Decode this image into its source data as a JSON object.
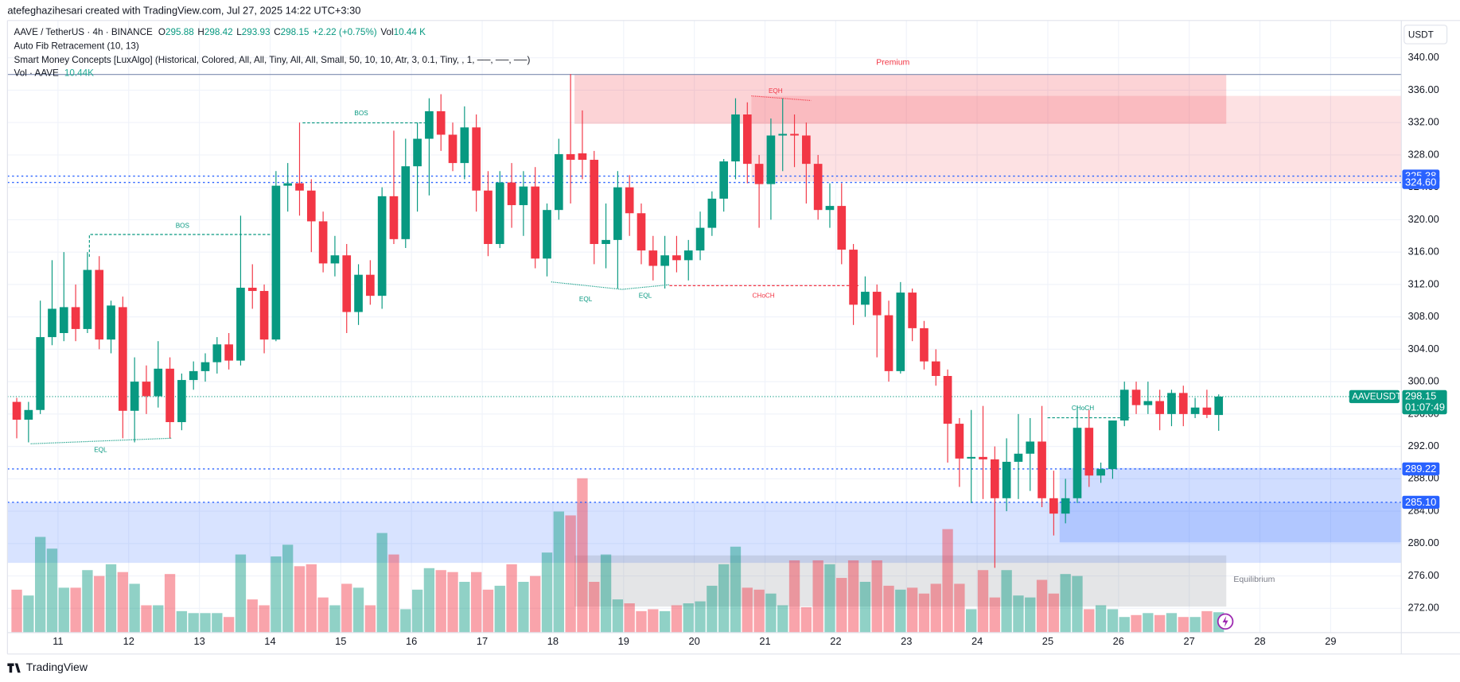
{
  "header": {
    "credit": "atefeghazihesari created with TradingView.com, Jul 27, 2025 14:22 UTC+3:30",
    "symbol": "AAVE / TetherUS · 4h · BINANCE",
    "open_label": "O",
    "open": 295.88,
    "high_label": "H",
    "high": 298.42,
    "low_label": "L",
    "low": 293.93,
    "close_label": "C",
    "close": 298.15,
    "change": "+2.22 (+0.75%)",
    "vol_label": "Vol",
    "vol": "10.44 K",
    "indicator_1": "Auto Fib Retracement (10, 13)",
    "indicator_2": "Smart Money Concepts [LuxAlgo] (Historical, Colored, All, All, Tiny, All, All, Small, 50, 10, 10, Atr, 3, 0.1, Tiny, , 1, ──, ──, ──)",
    "indicator_3": "Vol · AAVE",
    "indicator_3_value": "10.44K"
  },
  "footer": {
    "brand": "TradingView"
  },
  "chart_data": {
    "type": "candlestick",
    "currency": "USDT",
    "up_color": "#089981",
    "down_color": "#f23645",
    "volume_up_color": "rgba(8,153,129,0.45)",
    "volume_down_color": "rgba(242,54,69,0.45)",
    "ylim": [
      269,
      344.6
    ],
    "yticks": [
      {
        "value": 272,
        "label": "272.00"
      },
      {
        "value": 276,
        "label": "276.00"
      },
      {
        "value": 280,
        "label": "280.00"
      },
      {
        "value": 284,
        "label": "284.00"
      },
      {
        "value": 288,
        "label": "288.00"
      },
      {
        "value": 292,
        "label": "292.00"
      },
      {
        "value": 296,
        "label": "296.00"
      },
      {
        "value": 300,
        "label": "300.00"
      },
      {
        "value": 304,
        "label": "304.00"
      },
      {
        "value": 308,
        "label": "308.00"
      },
      {
        "value": 312,
        "label": "312.00"
      },
      {
        "value": 316,
        "label": "316.00"
      },
      {
        "value": 320,
        "label": "320.00"
      },
      {
        "value": 324,
        "label": "324.00"
      },
      {
        "value": 328,
        "label": "328.00"
      },
      {
        "value": 332,
        "label": "332.00"
      },
      {
        "value": 336,
        "label": "336.00"
      },
      {
        "value": 340,
        "label": "340.00"
      }
    ],
    "grid": true,
    "categories": [
      null,
      null,
      null,
      null,
      "11",
      null,
      null,
      null,
      null,
      null,
      "12",
      null,
      null,
      null,
      null,
      null,
      "13",
      null,
      null,
      null,
      null,
      null,
      "14",
      null,
      null,
      null,
      null,
      null,
      "15",
      null,
      null,
      null,
      null,
      null,
      "16",
      null,
      null,
      null,
      null,
      null,
      "17",
      null,
      null,
      null,
      null,
      null,
      "18",
      null,
      null,
      null,
      null,
      null,
      "19",
      null,
      null,
      null,
      null,
      null,
      "20",
      null,
      null,
      null,
      null,
      null,
      "21",
      null,
      null,
      null,
      null,
      null,
      "22",
      null,
      null,
      null,
      null,
      null,
      "23",
      null,
      null,
      null,
      null,
      null,
      "24",
      null,
      null,
      null,
      null,
      null,
      "25",
      null,
      null,
      null,
      null,
      null,
      "26",
      null,
      null,
      null,
      null,
      null,
      "27",
      null,
      null,
      null,
      null,
      null,
      "28",
      null,
      null,
      null,
      null,
      null,
      "29",
      null,
      null,
      null,
      null,
      null
    ],
    "ohlc": [
      [
        297.5,
        298,
        293,
        295.3
      ],
      [
        295.3,
        297.5,
        292.5,
        296.5
      ],
      [
        296.5,
        310,
        296,
        305.5
      ],
      [
        305.5,
        315,
        304.5,
        309
      ],
      [
        306,
        316,
        305,
        309.2
      ],
      [
        309.2,
        312,
        305,
        306.5
      ],
      [
        306.5,
        316,
        306,
        313.8
      ],
      [
        313.8,
        315.5,
        304,
        305.2
      ],
      [
        305.2,
        310,
        303.5,
        309.4
      ],
      [
        309.2,
        310.5,
        293,
        296.4
      ],
      [
        296.4,
        303,
        292.5,
        300
      ],
      [
        300,
        302,
        296,
        298.2
      ],
      [
        298.2,
        305,
        296.8,
        301.6
      ],
      [
        301.6,
        303,
        293,
        295
      ],
      [
        295,
        301,
        294,
        300.2
      ],
      [
        300.2,
        302.5,
        299,
        301.3
      ],
      [
        301.3,
        303.5,
        300,
        302.4
      ],
      [
        302.4,
        305.5,
        301,
        304.6
      ],
      [
        304.6,
        306,
        301.5,
        302.6
      ],
      [
        302.6,
        320.5,
        302,
        311.6
      ],
      [
        311.6,
        314.5,
        309,
        311.2
      ],
      [
        311.2,
        312,
        303.5,
        305.2
      ],
      [
        305.2,
        326,
        305,
        324.2
      ],
      [
        324.2,
        327,
        321,
        324.5
      ],
      [
        324.5,
        332,
        320.5,
        323.6
      ],
      [
        323.6,
        325,
        316,
        319.8
      ],
      [
        319.8,
        321,
        313.5,
        314.6
      ],
      [
        314.6,
        318,
        313,
        315.6
      ],
      [
        315.6,
        317,
        306,
        308.6
      ],
      [
        308.6,
        314.5,
        307,
        313.2
      ],
      [
        313.2,
        315,
        309.5,
        310.6
      ],
      [
        310.6,
        324,
        309,
        322.9
      ],
      [
        322.9,
        331,
        317,
        317.6
      ],
      [
        317.6,
        330,
        316.5,
        326.6
      ],
      [
        326.6,
        332,
        321,
        330
      ],
      [
        330,
        335,
        323,
        333.4
      ],
      [
        333.4,
        335.5,
        328.5,
        330.5
      ],
      [
        330.5,
        332,
        326,
        327
      ],
      [
        327,
        334,
        325,
        331.4
      ],
      [
        331.4,
        333,
        321,
        323.6
      ],
      [
        323.6,
        326,
        315.5,
        317
      ],
      [
        317,
        326,
        316.5,
        324.6
      ],
      [
        324.6,
        327,
        319,
        321.8
      ],
      [
        321.8,
        326,
        318,
        324.1
      ],
      [
        324.1,
        326.5,
        314,
        315.2
      ],
      [
        315.2,
        322,
        313,
        321.2
      ],
      [
        321.2,
        330,
        320,
        328.1
      ],
      [
        328.1,
        338,
        322,
        327.4
      ],
      [
        328.2,
        333.5,
        325,
        327.4
      ],
      [
        327.4,
        328.5,
        314.5,
        317
      ],
      [
        317,
        322,
        314,
        317.5
      ],
      [
        317.5,
        326,
        311.5,
        324
      ],
      [
        324,
        325.5,
        318,
        320.8
      ],
      [
        320.8,
        322,
        314.5,
        316.2
      ],
      [
        316.2,
        318,
        312.5,
        314.3
      ],
      [
        314.3,
        318,
        311.5,
        315.6
      ],
      [
        315.6,
        318,
        313.5,
        315
      ],
      [
        315,
        317.5,
        312.5,
        316.2
      ],
      [
        316.2,
        321,
        315,
        319
      ],
      [
        319,
        323.5,
        318,
        322.6
      ],
      [
        322.6,
        327.5,
        321,
        327.2
      ],
      [
        327.2,
        335,
        325,
        333
      ],
      [
        333,
        334.5,
        324.5,
        326.9
      ],
      [
        326.9,
        328,
        319,
        324.4
      ],
      [
        324.4,
        332.5,
        320,
        330.4
      ],
      [
        330.4,
        335,
        326,
        330.6
      ],
      [
        330.6,
        333,
        326.5,
        330.4
      ],
      [
        330.4,
        332,
        322,
        326.9
      ],
      [
        326.9,
        328,
        320,
        321.2
      ],
      [
        321.2,
        324.5,
        319,
        321.7
      ],
      [
        321.7,
        324.5,
        314.5,
        316.3
      ],
      [
        316.3,
        317,
        307,
        309.5
      ],
      [
        309.5,
        313,
        308,
        311.1
      ],
      [
        311.1,
        312,
        303,
        308.2
      ],
      [
        308.2,
        310,
        300,
        301.3
      ],
      [
        301.3,
        312.3,
        301,
        311
      ],
      [
        311,
        311.5,
        305,
        306.6
      ],
      [
        306.6,
        307.5,
        301.5,
        302.5
      ],
      [
        302.5,
        304,
        299.5,
        300.7
      ],
      [
        300.7,
        301.5,
        290,
        294.8
      ],
      [
        294.8,
        295.5,
        287,
        290.5
      ],
      [
        290.5,
        296.5,
        285,
        290.7
      ],
      [
        290.7,
        297,
        285.5,
        290.4
      ],
      [
        290.4,
        292,
        277,
        285.6
      ],
      [
        285.6,
        293,
        284,
        290.1
      ],
      [
        290.1,
        296,
        285.5,
        291.1
      ],
      [
        291.1,
        295.5,
        286.5,
        292.6
      ],
      [
        292.6,
        297,
        284.5,
        285.6
      ],
      [
        285.6,
        289,
        281,
        283.7
      ],
      [
        283.7,
        288,
        282.5,
        285.6
      ],
      [
        285.6,
        297,
        285,
        294.3
      ],
      [
        294.3,
        296.5,
        287,
        288.4
      ],
      [
        288.4,
        290,
        287.5,
        289.2
      ],
      [
        289.2,
        295,
        288,
        295.2
      ],
      [
        295.2,
        300,
        294.5,
        299
      ],
      [
        299,
        300,
        296,
        297.1
      ],
      [
        297.1,
        300,
        296,
        297.6
      ],
      [
        297.6,
        299,
        294,
        296
      ],
      [
        296,
        299,
        294.5,
        298.6
      ],
      [
        298.6,
        299.5,
        294.5,
        296
      ],
      [
        296,
        298,
        295.5,
        296.8
      ],
      [
        296.8,
        299,
        295.5,
        295.9
      ],
      [
        295.88,
        298.42,
        293.93,
        298.15
      ],
      null,
      null,
      null,
      null,
      null,
      null,
      null,
      null,
      null,
      null,
      null,
      null,
      null,
      null,
      null
    ],
    "volume": [
      22,
      19,
      49,
      43,
      23,
      23,
      32,
      29,
      35,
      31,
      25,
      14,
      14,
      30,
      11,
      10,
      10,
      10,
      8,
      40,
      17,
      14,
      39,
      45,
      34,
      35,
      18,
      14,
      25,
      23,
      14,
      51,
      40,
      12,
      22,
      33,
      32,
      31,
      26,
      31,
      22,
      24,
      35,
      26,
      29,
      41,
      62,
      60,
      79,
      26,
      40,
      17,
      15,
      11,
      12,
      11,
      14,
      15,
      16,
      24,
      35,
      44,
      23,
      22,
      20,
      14,
      37,
      13,
      37,
      35,
      28,
      37,
      26,
      37,
      24,
      22,
      23,
      20,
      25,
      53,
      25,
      12,
      32,
      18,
      32,
      19,
      18,
      27,
      20,
      30,
      29,
      12,
      14,
      12,
      8,
      9,
      10,
      9,
      10,
      8,
      8,
      11,
      10.44,
      null,
      null,
      null,
      null,
      null,
      null,
      null,
      null,
      null,
      null,
      null,
      null,
      null,
      null,
      null
    ],
    "price_levels": [
      325.38,
      {
        "value": 324.6,
        "label": "324.60"
      },
      289.22,
      {
        "value": 285.1,
        "label": "285.10"
      }
    ],
    "last_price": 298.15,
    "symbol_tag": "AAVEUSDT",
    "countdown": "01:07:49",
    "annotations": [
      "Premium",
      "Equilibrium",
      "BOS",
      "BOS",
      "EQL",
      "EQL",
      "EQL",
      "EQH",
      "CHoCH",
      "CHoCH"
    ]
  }
}
